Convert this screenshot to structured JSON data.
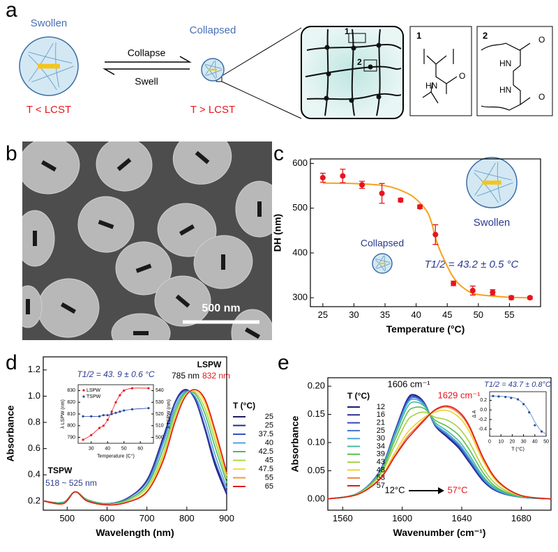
{
  "panel_labels": [
    "a",
    "b",
    "c",
    "d",
    "e"
  ],
  "diagram": {
    "swollen": "Swollen",
    "collapsed": "Collapsed",
    "collapse": "Collapse",
    "swell": "Swell",
    "below_lcst": "T < LCST",
    "above_lcst": "T > LCST",
    "site_1": "1",
    "site_2": "2",
    "structure_1": {
      "label": "1",
      "amine": "HN",
      "carbonyl": "O"
    },
    "structure_2": {
      "label": "2",
      "amine_top": "HN",
      "carbonyl_top": "O",
      "amine_bottom": "HN",
      "carbonyl_bottom": "O"
    }
  },
  "micrograph": {
    "scale_bar": "500 nm"
  },
  "chart_data": [
    {
      "type": "scatter",
      "x_label": "Temperature (°C)",
      "y_label": "DH (nm)",
      "x": [
        25,
        28.2,
        31.3,
        34.5,
        37.5,
        40.6,
        43.1,
        46,
        49.1,
        52.3,
        55.3,
        58.3
      ],
      "values": [
        568,
        572,
        552,
        533,
        518,
        503,
        441,
        332,
        316,
        312,
        300,
        300
      ],
      "errors": [
        10,
        15,
        8,
        22,
        4,
        4,
        22,
        5,
        10,
        6,
        4,
        3
      ],
      "color": "#e8141b",
      "fit": {
        "x": [
          25,
          30,
          35,
          38,
          40,
          42,
          43.2,
          44,
          46,
          48,
          50,
          55,
          58
        ],
        "values": [
          556,
          555,
          550,
          537,
          520,
          486,
          430,
          400,
          345,
          318,
          307,
          301,
          300
        ],
        "color": "#f7a21b"
      },
      "xlim": [
        23,
        60
      ],
      "xticks": [
        25,
        30,
        35,
        40,
        45,
        50,
        55
      ],
      "ylim": [
        280,
        610
      ],
      "yticks": [
        300,
        400,
        500,
        600
      ],
      "annotations": {
        "swollen": "Swollen",
        "collapsed": "Collapsed",
        "t_half": "T1/2 = 43.2 ± 0.5 °C"
      }
    },
    {
      "type": "line",
      "x_label": "Wavelength (nm)",
      "y_label": "Absorbance",
      "x": [
        440,
        490,
        520,
        550,
        600,
        650,
        700,
        740,
        770,
        795,
        820,
        845,
        870,
        900
      ],
      "series": [
        {
          "name": "25",
          "color": "#1a1a6e",
          "values": [
            0.2,
            0.19,
            0.27,
            0.21,
            0.18,
            0.22,
            0.36,
            0.68,
            0.95,
            1.05,
            0.98,
            0.75,
            0.48,
            0.25
          ]
        },
        {
          "name": "25",
          "color": "#27278f",
          "values": [
            0.2,
            0.19,
            0.27,
            0.21,
            0.18,
            0.22,
            0.36,
            0.67,
            0.95,
            1.05,
            0.98,
            0.76,
            0.49,
            0.26
          ]
        },
        {
          "name": "37.5",
          "color": "#3a4fc0",
          "values": [
            0.2,
            0.19,
            0.27,
            0.21,
            0.18,
            0.22,
            0.35,
            0.66,
            0.94,
            1.04,
            0.99,
            0.77,
            0.51,
            0.27
          ]
        },
        {
          "name": "40",
          "color": "#4aa3d8",
          "values": [
            0.2,
            0.19,
            0.27,
            0.21,
            0.18,
            0.21,
            0.33,
            0.63,
            0.91,
            1.03,
            1.0,
            0.82,
            0.56,
            0.3
          ]
        },
        {
          "name": "42.5",
          "color": "#4db86a",
          "values": [
            0.2,
            0.19,
            0.27,
            0.21,
            0.18,
            0.21,
            0.32,
            0.59,
            0.88,
            1.02,
            1.02,
            0.87,
            0.62,
            0.34
          ]
        },
        {
          "name": "45",
          "color": "#a8d84a",
          "values": [
            0.2,
            0.18,
            0.27,
            0.2,
            0.17,
            0.2,
            0.3,
            0.55,
            0.85,
            1.01,
            1.03,
            0.91,
            0.67,
            0.37
          ]
        },
        {
          "name": "47.5",
          "color": "#f0e040",
          "values": [
            0.2,
            0.18,
            0.27,
            0.2,
            0.17,
            0.19,
            0.28,
            0.53,
            0.82,
            1.0,
            1.04,
            0.95,
            0.71,
            0.39
          ]
        },
        {
          "name": "55",
          "color": "#f59a30",
          "values": [
            0.2,
            0.18,
            0.27,
            0.2,
            0.17,
            0.19,
            0.27,
            0.51,
            0.81,
            0.99,
            1.05,
            0.97,
            0.74,
            0.41
          ]
        },
        {
          "name": "65",
          "color": "#e41a1c",
          "values": [
            0.2,
            0.18,
            0.27,
            0.2,
            0.17,
            0.19,
            0.27,
            0.5,
            0.8,
            0.99,
            1.05,
            0.98,
            0.75,
            0.42
          ]
        }
      ],
      "xlim": [
        440,
        900
      ],
      "xticks": [
        500,
        600,
        700,
        800,
        900
      ],
      "ylim": [
        0.13,
        1.3
      ],
      "yticks": [
        0.2,
        0.4,
        0.6,
        0.8,
        {
          "value": 1,
          "label": "1.0"
        },
        1.2
      ],
      "legend_title": "T (°C)",
      "annotations": {
        "lspw": "LSPW",
        "peak_low": "785 nm",
        "peak_high": "832 nm",
        "tspw": "TSPW",
        "tspw_range": "518 ~ 525 nm"
      }
    },
    {
      "type": "line",
      "markers": true,
      "title": "T1/2 = 43. 9 ± 0.6 °C",
      "x_label": "Temperature (C°)",
      "y_label": "λ LSPW (nm)",
      "y2_label": "λ TSPW (nm)",
      "x": [
        25,
        30,
        35,
        37.5,
        40,
        42.5,
        45,
        47.5,
        50,
        55,
        65
      ],
      "series": [
        {
          "name": "LSPW",
          "color": "#e8141b",
          "values": [
            788,
            792,
            798,
            800,
            805,
            812,
            820,
            826,
            830,
            832,
            832
          ]
        },
        {
          "name": "TSPW",
          "color": "#2a4aa0",
          "axis": "y2",
          "values": [
            518,
            518,
            518,
            519,
            519,
            520,
            521,
            522,
            523,
            524,
            525
          ]
        }
      ],
      "xlim": [
        22,
        68
      ],
      "xticks": [
        30,
        40,
        50,
        60
      ],
      "ylim": [
        785,
        835
      ],
      "yticks": [
        790,
        800,
        810,
        820,
        830
      ],
      "y2lim": [
        495,
        545
      ],
      "y2ticks": [
        500,
        510,
        520,
        530,
        540
      ]
    },
    {
      "type": "line",
      "x_label": "Wavenumber (cm⁻¹)",
      "y_label": "Absorbance",
      "x": [
        1550,
        1570,
        1585,
        1595,
        1603,
        1608,
        1615,
        1622,
        1630,
        1638,
        1645,
        1655,
        1665,
        1680,
        1700
      ],
      "series": [
        {
          "name": "12",
          "color": "#1a1a6e",
          "values": [
            0,
            0.01,
            0.05,
            0.12,
            0.175,
            0.185,
            0.17,
            0.13,
            0.11,
            0.09,
            0.065,
            0.03,
            0.012,
            0.003,
            0
          ]
        },
        {
          "name": "16",
          "color": "#2a2a9a",
          "values": [
            0,
            0.01,
            0.05,
            0.119,
            0.174,
            0.184,
            0.169,
            0.131,
            0.111,
            0.091,
            0.066,
            0.031,
            0.012,
            0.003,
            0
          ]
        },
        {
          "name": "21",
          "color": "#3346c0",
          "values": [
            0,
            0.01,
            0.049,
            0.118,
            0.172,
            0.182,
            0.169,
            0.131,
            0.113,
            0.093,
            0.068,
            0.032,
            0.013,
            0.003,
            0
          ]
        },
        {
          "name": "25",
          "color": "#3f74d0",
          "values": [
            0,
            0.01,
            0.049,
            0.116,
            0.169,
            0.18,
            0.168,
            0.132,
            0.114,
            0.095,
            0.07,
            0.033,
            0.013,
            0.003,
            0
          ]
        },
        {
          "name": "30",
          "color": "#46a8d8",
          "values": [
            0,
            0.01,
            0.048,
            0.115,
            0.167,
            0.177,
            0.166,
            0.133,
            0.117,
            0.098,
            0.073,
            0.035,
            0.014,
            0.003,
            0
          ]
        },
        {
          "name": "34",
          "color": "#48b89a",
          "values": [
            0,
            0.01,
            0.047,
            0.111,
            0.161,
            0.172,
            0.164,
            0.136,
            0.121,
            0.103,
            0.078,
            0.038,
            0.016,
            0.004,
            0
          ]
        },
        {
          "name": "39",
          "color": "#5cbf4a",
          "values": [
            0,
            0.009,
            0.045,
            0.104,
            0.151,
            0.162,
            0.16,
            0.14,
            0.129,
            0.113,
            0.088,
            0.044,
            0.018,
            0.004,
            0
          ]
        },
        {
          "name": "43",
          "color": "#a8d040",
          "values": [
            0,
            0.009,
            0.042,
            0.095,
            0.137,
            0.149,
            0.154,
            0.145,
            0.14,
            0.126,
            0.101,
            0.052,
            0.022,
            0.005,
            0
          ]
        },
        {
          "name": "48",
          "color": "#f0d030",
          "values": [
            0,
            0.008,
            0.037,
            0.082,
            0.116,
            0.13,
            0.145,
            0.154,
            0.157,
            0.145,
            0.12,
            0.064,
            0.027,
            0.006,
            0
          ]
        },
        {
          "name": "53",
          "color": "#f0803a",
          "values": [
            0,
            0.008,
            0.036,
            0.077,
            0.109,
            0.123,
            0.142,
            0.157,
            0.163,
            0.152,
            0.127,
            0.068,
            0.029,
            0.006,
            0
          ]
        },
        {
          "name": "57",
          "color": "#e01a1c",
          "values": [
            0,
            0.008,
            0.035,
            0.075,
            0.105,
            0.12,
            0.14,
            0.158,
            0.165,
            0.155,
            0.13,
            0.07,
            0.03,
            0.006,
            0
          ]
        }
      ],
      "xlim": [
        1550,
        1700
      ],
      "xticks": [
        1560,
        1600,
        1640,
        1680
      ],
      "ylim": [
        -0.02,
        0.215
      ],
      "yticks": [
        {
          "value": 0,
          "label": "0.00"
        },
        0.05,
        {
          "value": 0.1,
          "label": "0.10"
        },
        0.15,
        {
          "value": 0.2,
          "label": "0.20"
        }
      ],
      "legend_title": "T (°C)",
      "annotations": {
        "peak_low": "1606 cm⁻¹",
        "peak_high": "1629 cm⁻¹",
        "t_low": "12°C",
        "t_high": "57°C"
      }
    },
    {
      "type": "scatter",
      "title": "T1/2 = 43.7 ± 0.8°C",
      "x_label": "T (°C)",
      "y_label": "Δ A",
      "x": [
        3,
        8,
        14,
        19,
        25,
        30,
        35,
        40,
        46
      ],
      "values": [
        0.29,
        0.28,
        0.27,
        0.25,
        0.22,
        0.12,
        -0.05,
        -0.32,
        -0.45
      ],
      "color": "#2a4aa0",
      "fit": {
        "x": [
          0,
          10,
          20,
          25,
          30,
          35,
          40,
          45,
          50
        ],
        "values": [
          0.29,
          0.285,
          0.26,
          0.22,
          0.13,
          -0.03,
          -0.25,
          -0.42,
          -0.5
        ],
        "color": "#6a9ad0"
      },
      "xlim": [
        0,
        50
      ],
      "xticks": [
        0,
        10,
        20,
        30,
        40,
        50
      ],
      "ylim": [
        -0.55,
        0.38
      ],
      "yticks": [
        0.2,
        {
          "value": 0,
          "label": "0.0"
        },
        -0.2,
        -0.4
      ]
    }
  ]
}
